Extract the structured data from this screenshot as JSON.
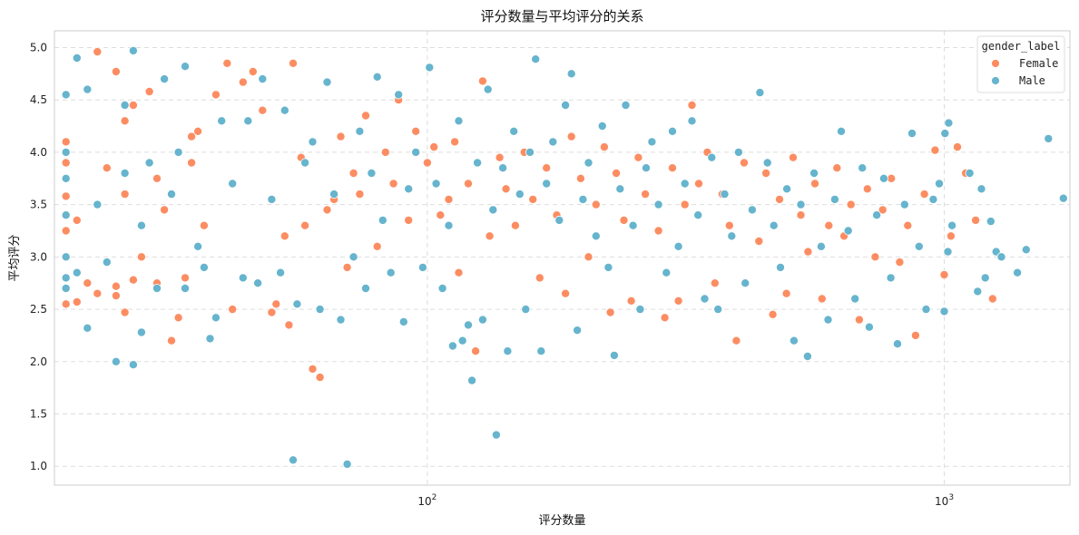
{
  "chart_data": {
    "type": "scatter",
    "title": "评分数量与平均评分的关系",
    "xlabel": "评分数量",
    "ylabel": "平均评分",
    "xscale": "log",
    "xlim": [
      19,
      1750
    ],
    "ylim": [
      0.82,
      5.16
    ],
    "xticks": [
      {
        "value": 100,
        "base": "10",
        "exp": "2"
      },
      {
        "value": 1000,
        "base": "10",
        "exp": "3"
      }
    ],
    "yticks": [
      1.0,
      1.5,
      2.0,
      2.5,
      3.0,
      3.5,
      4.0,
      4.5,
      5.0
    ],
    "grid": true,
    "legend": {
      "title": "gender_label",
      "placement": "top-right"
    },
    "series": [
      {
        "name": "Female",
        "color": "#fc8d62",
        "points": [
          [
            20,
            2.55
          ],
          [
            20,
            3.25
          ],
          [
            20,
            3.58
          ],
          [
            20,
            3.9
          ],
          [
            20,
            4.1
          ],
          [
            21,
            2.57
          ],
          [
            21,
            3.35
          ],
          [
            22,
            2.75
          ],
          [
            23,
            4.96
          ],
          [
            23,
            2.65
          ],
          [
            24,
            3.85
          ],
          [
            25,
            4.77
          ],
          [
            25,
            2.63
          ],
          [
            25,
            2.72
          ],
          [
            26,
            2.47
          ],
          [
            26,
            3.6
          ],
          [
            26,
            4.3
          ],
          [
            27,
            2.78
          ],
          [
            27,
            4.45
          ],
          [
            28,
            3.0
          ],
          [
            29,
            4.58
          ],
          [
            30,
            3.75
          ],
          [
            30,
            2.75
          ],
          [
            31,
            3.45
          ],
          [
            32,
            2.2
          ],
          [
            33,
            2.42
          ],
          [
            34,
            2.8
          ],
          [
            35,
            3.9
          ],
          [
            35,
            4.15
          ],
          [
            36,
            4.2
          ],
          [
            37,
            3.3
          ],
          [
            39,
            4.55
          ],
          [
            41,
            4.85
          ],
          [
            42,
            2.5
          ],
          [
            44,
            4.67
          ],
          [
            46,
            4.77
          ],
          [
            48,
            4.4
          ],
          [
            50,
            2.47
          ],
          [
            51,
            2.55
          ],
          [
            53,
            3.2
          ],
          [
            54,
            2.35
          ],
          [
            55,
            4.85
          ],
          [
            57,
            3.95
          ],
          [
            58,
            3.3
          ],
          [
            60,
            1.93
          ],
          [
            62,
            1.85
          ],
          [
            64,
            3.45
          ],
          [
            66,
            3.55
          ],
          [
            68,
            4.15
          ],
          [
            70,
            2.9
          ],
          [
            72,
            3.8
          ],
          [
            74,
            3.6
          ],
          [
            76,
            4.35
          ],
          [
            80,
            3.1
          ],
          [
            83,
            4.0
          ],
          [
            86,
            3.7
          ],
          [
            88,
            4.5
          ],
          [
            92,
            3.35
          ],
          [
            95,
            4.2
          ],
          [
            100,
            3.9
          ],
          [
            103,
            4.05
          ],
          [
            106,
            3.4
          ],
          [
            110,
            3.55
          ],
          [
            113,
            4.1
          ],
          [
            115,
            2.85
          ],
          [
            120,
            3.7
          ],
          [
            124,
            2.1
          ],
          [
            128,
            4.68
          ],
          [
            132,
            3.2
          ],
          [
            138,
            3.95
          ],
          [
            142,
            3.65
          ],
          [
            148,
            3.3
          ],
          [
            154,
            4.0
          ],
          [
            160,
            3.55
          ],
          [
            165,
            2.8
          ],
          [
            170,
            3.85
          ],
          [
            178,
            3.4
          ],
          [
            185,
            2.65
          ],
          [
            190,
            4.15
          ],
          [
            198,
            3.75
          ],
          [
            205,
            3.0
          ],
          [
            212,
            3.5
          ],
          [
            220,
            4.05
          ],
          [
            226,
            2.47
          ],
          [
            232,
            3.8
          ],
          [
            240,
            3.35
          ],
          [
            248,
            2.58
          ],
          [
            256,
            3.95
          ],
          [
            264,
            3.6
          ],
          [
            272,
            4.1
          ],
          [
            280,
            3.25
          ],
          [
            288,
            2.42
          ],
          [
            298,
            3.85
          ],
          [
            306,
            2.58
          ],
          [
            315,
            3.5
          ],
          [
            325,
            4.45
          ],
          [
            335,
            3.7
          ],
          [
            348,
            4.0
          ],
          [
            360,
            2.75
          ],
          [
            372,
            3.6
          ],
          [
            384,
            3.3
          ],
          [
            396,
            2.2
          ],
          [
            410,
            3.9
          ],
          [
            424,
            3.45
          ],
          [
            438,
            3.15
          ],
          [
            452,
            3.8
          ],
          [
            466,
            2.45
          ],
          [
            480,
            3.55
          ],
          [
            495,
            2.65
          ],
          [
            510,
            3.95
          ],
          [
            528,
            3.4
          ],
          [
            545,
            3.05
          ],
          [
            562,
            3.7
          ],
          [
            580,
            2.6
          ],
          [
            598,
            3.3
          ],
          [
            620,
            3.85
          ],
          [
            640,
            3.2
          ],
          [
            660,
            3.5
          ],
          [
            685,
            2.4
          ],
          [
            710,
            3.65
          ],
          [
            735,
            3.0
          ],
          [
            760,
            3.45
          ],
          [
            790,
            3.75
          ],
          [
            820,
            2.95
          ],
          [
            850,
            3.3
          ],
          [
            880,
            2.25
          ],
          [
            915,
            3.6
          ],
          [
            960,
            4.02
          ],
          [
            1000,
            2.83
          ],
          [
            1030,
            3.2
          ],
          [
            1060,
            4.05
          ],
          [
            1100,
            3.8
          ],
          [
            1150,
            3.35
          ],
          [
            1240,
            2.6
          ]
        ]
      },
      {
        "name": "Male",
        "color": "#66b4cd",
        "points": [
          [
            20,
            2.7
          ],
          [
            20,
            2.8
          ],
          [
            20,
            3.0
          ],
          [
            20,
            3.4
          ],
          [
            20,
            3.75
          ],
          [
            20,
            4.0
          ],
          [
            20,
            4.55
          ],
          [
            21,
            4.9
          ],
          [
            21,
            2.85
          ],
          [
            22,
            2.32
          ],
          [
            22,
            4.6
          ],
          [
            23,
            3.5
          ],
          [
            24,
            2.95
          ],
          [
            25,
            2.0
          ],
          [
            26,
            3.8
          ],
          [
            26,
            4.45
          ],
          [
            27,
            1.97
          ],
          [
            27,
            4.97
          ],
          [
            28,
            2.28
          ],
          [
            28,
            3.3
          ],
          [
            29,
            3.9
          ],
          [
            30,
            2.7
          ],
          [
            31,
            4.7
          ],
          [
            32,
            3.6
          ],
          [
            33,
            4.0
          ],
          [
            34,
            2.7
          ],
          [
            34,
            4.82
          ],
          [
            36,
            3.1
          ],
          [
            37,
            2.9
          ],
          [
            38,
            2.22
          ],
          [
            39,
            2.42
          ],
          [
            40,
            4.3
          ],
          [
            42,
            3.7
          ],
          [
            44,
            2.8
          ],
          [
            45,
            4.3
          ],
          [
            47,
            2.75
          ],
          [
            48,
            4.7
          ],
          [
            50,
            3.55
          ],
          [
            52,
            2.85
          ],
          [
            53,
            4.4
          ],
          [
            55,
            1.06
          ],
          [
            56,
            2.55
          ],
          [
            58,
            3.9
          ],
          [
            60,
            4.1
          ],
          [
            62,
            2.5
          ],
          [
            64,
            4.67
          ],
          [
            66,
            3.6
          ],
          [
            68,
            2.4
          ],
          [
            70,
            1.02
          ],
          [
            72,
            3.0
          ],
          [
            74,
            4.2
          ],
          [
            76,
            2.7
          ],
          [
            78,
            3.8
          ],
          [
            80,
            4.72
          ],
          [
            82,
            3.35
          ],
          [
            85,
            2.85
          ],
          [
            88,
            4.55
          ],
          [
            90,
            2.38
          ],
          [
            92,
            3.65
          ],
          [
            95,
            4.0
          ],
          [
            98,
            2.9
          ],
          [
            101,
            4.81
          ],
          [
            104,
            3.7
          ],
          [
            107,
            2.7
          ],
          [
            110,
            3.3
          ],
          [
            112,
            2.15
          ],
          [
            115,
            4.3
          ],
          [
            117,
            2.2
          ],
          [
            120,
            2.35
          ],
          [
            122,
            1.82
          ],
          [
            125,
            3.9
          ],
          [
            128,
            2.4
          ],
          [
            131,
            4.6
          ],
          [
            134,
            3.45
          ],
          [
            136,
            1.3
          ],
          [
            140,
            3.85
          ],
          [
            143,
            2.1
          ],
          [
            147,
            4.2
          ],
          [
            151,
            3.6
          ],
          [
            155,
            2.5
          ],
          [
            158,
            4.0
          ],
          [
            162,
            4.89
          ],
          [
            166,
            2.1
          ],
          [
            170,
            3.7
          ],
          [
            175,
            4.1
          ],
          [
            180,
            3.35
          ],
          [
            185,
            4.45
          ],
          [
            190,
            4.75
          ],
          [
            195,
            2.3
          ],
          [
            200,
            3.55
          ],
          [
            205,
            3.9
          ],
          [
            212,
            3.2
          ],
          [
            218,
            4.25
          ],
          [
            224,
            2.9
          ],
          [
            230,
            2.06
          ],
          [
            236,
            3.65
          ],
          [
            242,
            4.45
          ],
          [
            250,
            3.3
          ],
          [
            258,
            2.5
          ],
          [
            265,
            3.85
          ],
          [
            272,
            4.1
          ],
          [
            280,
            3.5
          ],
          [
            290,
            2.85
          ],
          [
            298,
            4.2
          ],
          [
            306,
            3.1
          ],
          [
            315,
            3.7
          ],
          [
            325,
            4.3
          ],
          [
            334,
            3.4
          ],
          [
            344,
            2.6
          ],
          [
            355,
            3.95
          ],
          [
            365,
            2.5
          ],
          [
            376,
            3.6
          ],
          [
            388,
            3.2
          ],
          [
            400,
            4.0
          ],
          [
            412,
            2.75
          ],
          [
            425,
            3.45
          ],
          [
            440,
            4.57
          ],
          [
            455,
            3.9
          ],
          [
            468,
            3.3
          ],
          [
            482,
            2.9
          ],
          [
            496,
            3.65
          ],
          [
            512,
            2.2
          ],
          [
            528,
            3.5
          ],
          [
            544,
            2.05
          ],
          [
            560,
            3.8
          ],
          [
            578,
            3.1
          ],
          [
            596,
            2.4
          ],
          [
            614,
            3.55
          ],
          [
            632,
            4.2
          ],
          [
            652,
            3.25
          ],
          [
            672,
            2.6
          ],
          [
            694,
            3.85
          ],
          [
            716,
            2.33
          ],
          [
            740,
            3.4
          ],
          [
            764,
            3.75
          ],
          [
            788,
            2.8
          ],
          [
            812,
            2.17
          ],
          [
            838,
            3.5
          ],
          [
            866,
            4.18
          ],
          [
            894,
            3.1
          ],
          [
            922,
            2.5
          ],
          [
            952,
            3.55
          ],
          [
            978,
            3.7
          ],
          [
            1000,
            2.48
          ],
          [
            1003,
            4.18
          ],
          [
            1016,
            3.05
          ],
          [
            1020,
            4.28
          ],
          [
            1035,
            3.3
          ],
          [
            1120,
            3.8
          ],
          [
            1160,
            2.67
          ],
          [
            1180,
            3.65
          ],
          [
            1200,
            2.8
          ],
          [
            1230,
            3.34
          ],
          [
            1260,
            3.05
          ],
          [
            1290,
            3.0
          ],
          [
            1385,
            2.85
          ],
          [
            1440,
            3.07
          ],
          [
            1590,
            4.13
          ],
          [
            1700,
            3.56
          ]
        ]
      }
    ]
  }
}
